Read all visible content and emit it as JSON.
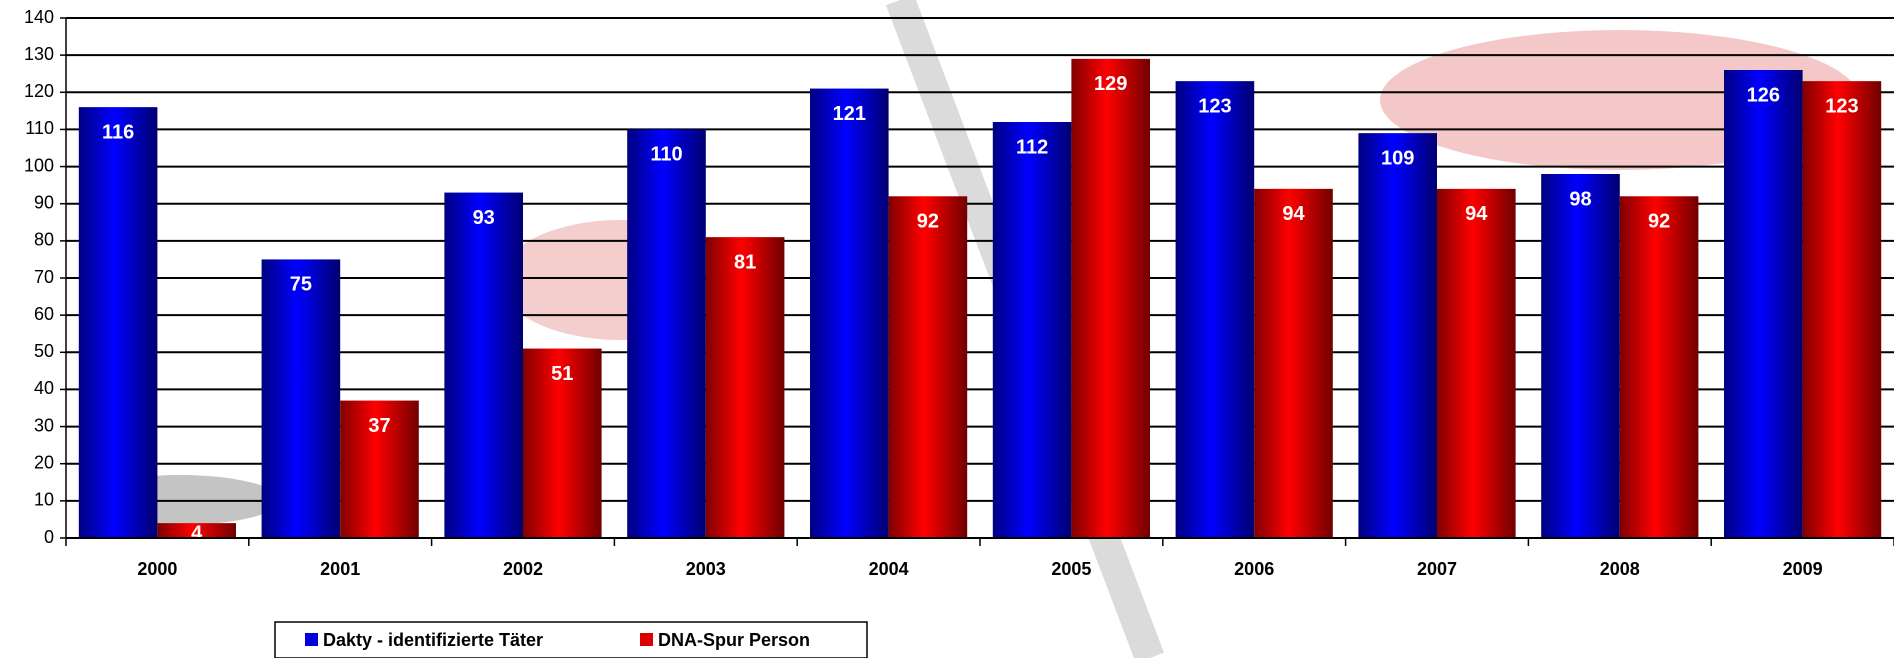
{
  "chart_data": {
    "type": "bar",
    "categories": [
      "2000",
      "2001",
      "2002",
      "2003",
      "2004",
      "2005",
      "2006",
      "2007",
      "2008",
      "2009"
    ],
    "series": [
      {
        "name": "Dakty - identifizierte Täter",
        "color": "#0000dd",
        "values": [
          116,
          75,
          93,
          110,
          121,
          112,
          123,
          109,
          98,
          126
        ]
      },
      {
        "name": "DNA-Spur Person",
        "color": "#dd0000",
        "values": [
          4,
          37,
          51,
          81,
          92,
          129,
          94,
          94,
          92,
          123
        ]
      }
    ],
    "ylim": [
      0,
      140
    ],
    "yticks": [
      0,
      10,
      20,
      30,
      40,
      50,
      60,
      70,
      80,
      90,
      100,
      110,
      120,
      130,
      140
    ],
    "grid": true,
    "legend": "bottom"
  }
}
